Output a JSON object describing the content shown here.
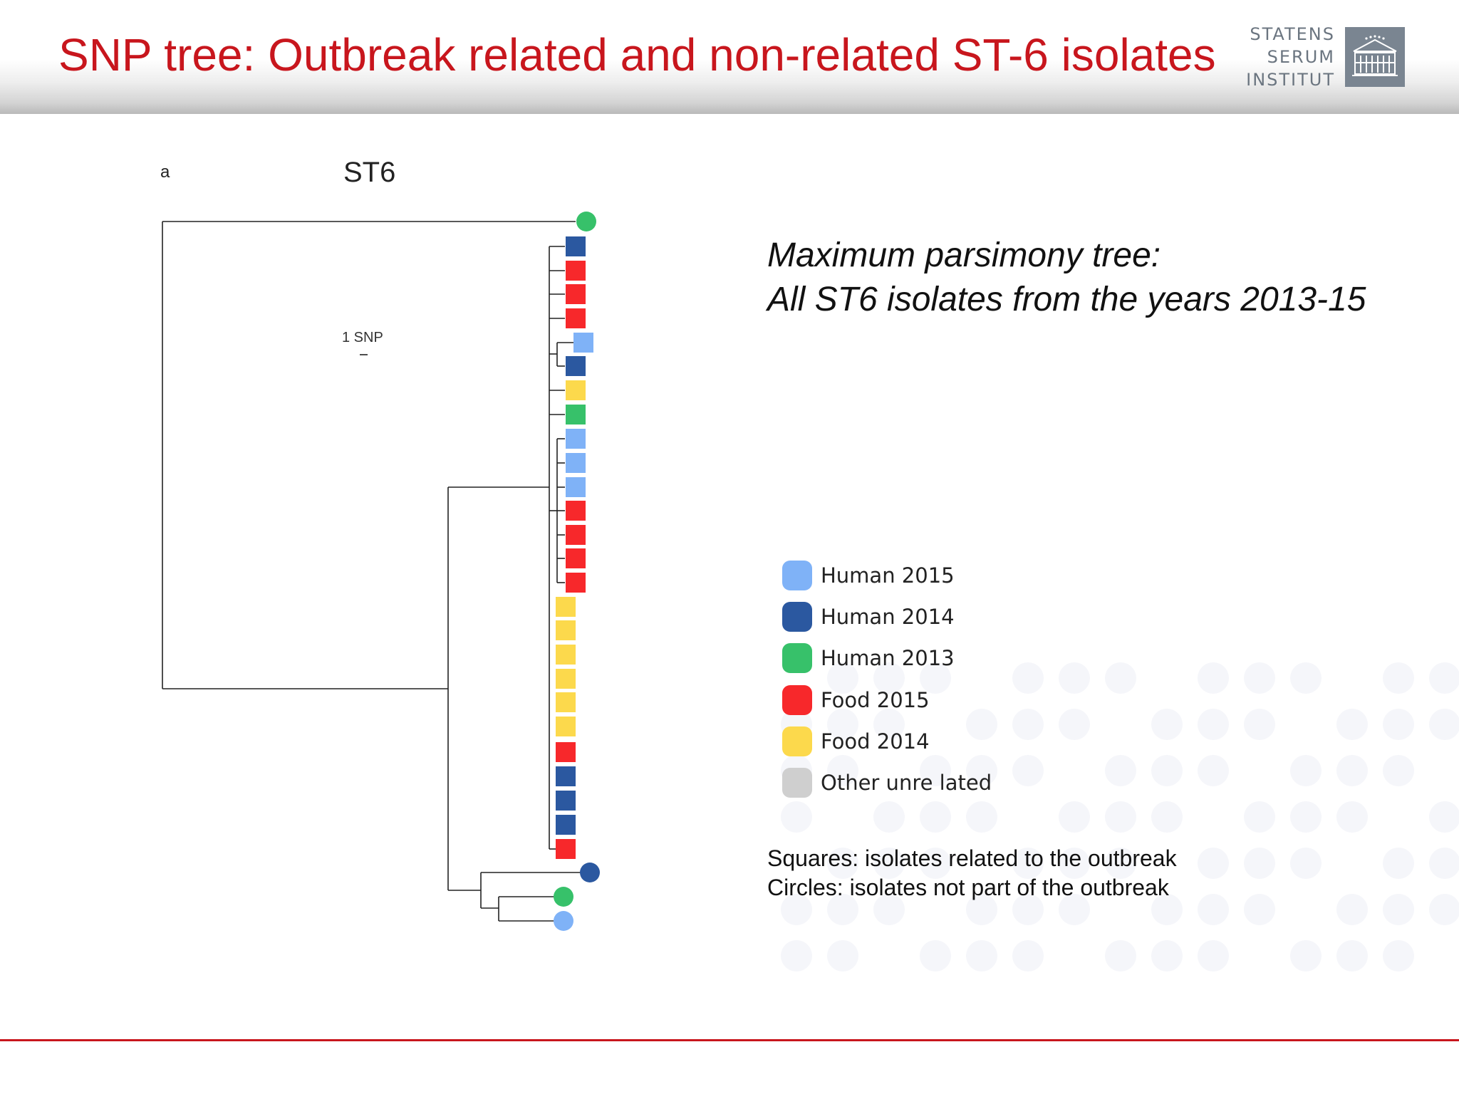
{
  "header": {
    "title": "SNP tree: Outbreak related and non-related ST-6 isolates",
    "logo_lines": [
      "STATENS",
      "SERUM",
      "INSTITUT"
    ]
  },
  "figure": {
    "panel_letter": "a",
    "tree_title": "ST6",
    "scale_label": "1 SNP"
  },
  "subtitle": {
    "line1": "Maximum parsimony tree:",
    "line2": "All ST6 isolates from the years 2013-15"
  },
  "legend": [
    {
      "label": "Human 2015",
      "color": "#7fb2f7"
    },
    {
      "label": "Human 2014",
      "color": "#2b58a0"
    },
    {
      "label": "Human 2013",
      "color": "#37c16a"
    },
    {
      "label": "Food 2015",
      "color": "#f7282b"
    },
    {
      "label": "Food 2014",
      "color": "#fcd94c"
    },
    {
      "label": "Other unre lated",
      "color": "#cfcfcf"
    }
  ],
  "notes": {
    "squares": "Squares: isolates related to the outbreak",
    "circles": "Circles: isolates not part of the outbreak"
  },
  "tree_leaves": [
    {
      "shape": "circle",
      "category": "Human 2013"
    },
    {
      "shape": "square",
      "category": "Human 2014"
    },
    {
      "shape": "square",
      "category": "Food 2015"
    },
    {
      "shape": "square",
      "category": "Food 2015"
    },
    {
      "shape": "square",
      "category": "Food 2015"
    },
    {
      "shape": "square",
      "category": "Human 2015"
    },
    {
      "shape": "square",
      "category": "Human 2014"
    },
    {
      "shape": "square",
      "category": "Food 2014"
    },
    {
      "shape": "square",
      "category": "Human 2013"
    },
    {
      "shape": "square",
      "category": "Human 2015"
    },
    {
      "shape": "square",
      "category": "Human 2015"
    },
    {
      "shape": "square",
      "category": "Human 2015"
    },
    {
      "shape": "square",
      "category": "Food 2015"
    },
    {
      "shape": "square",
      "category": "Food 2015"
    },
    {
      "shape": "square",
      "category": "Food 2015"
    },
    {
      "shape": "square",
      "category": "Food 2015"
    },
    {
      "shape": "square",
      "category": "Food 2014"
    },
    {
      "shape": "square",
      "category": "Food 2014"
    },
    {
      "shape": "square",
      "category": "Food 2014"
    },
    {
      "shape": "square",
      "category": "Food 2014"
    },
    {
      "shape": "square",
      "category": "Food 2014"
    },
    {
      "shape": "square",
      "category": "Food 2014"
    },
    {
      "shape": "square",
      "category": "Food 2015"
    },
    {
      "shape": "square",
      "category": "Human 2014"
    },
    {
      "shape": "square",
      "category": "Human 2014"
    },
    {
      "shape": "square",
      "category": "Human 2014"
    },
    {
      "shape": "square",
      "category": "Food 2015"
    },
    {
      "shape": "circle",
      "category": "Human 2014"
    },
    {
      "shape": "circle",
      "category": "Human 2013"
    },
    {
      "shape": "circle",
      "category": "Human 2015"
    }
  ]
}
